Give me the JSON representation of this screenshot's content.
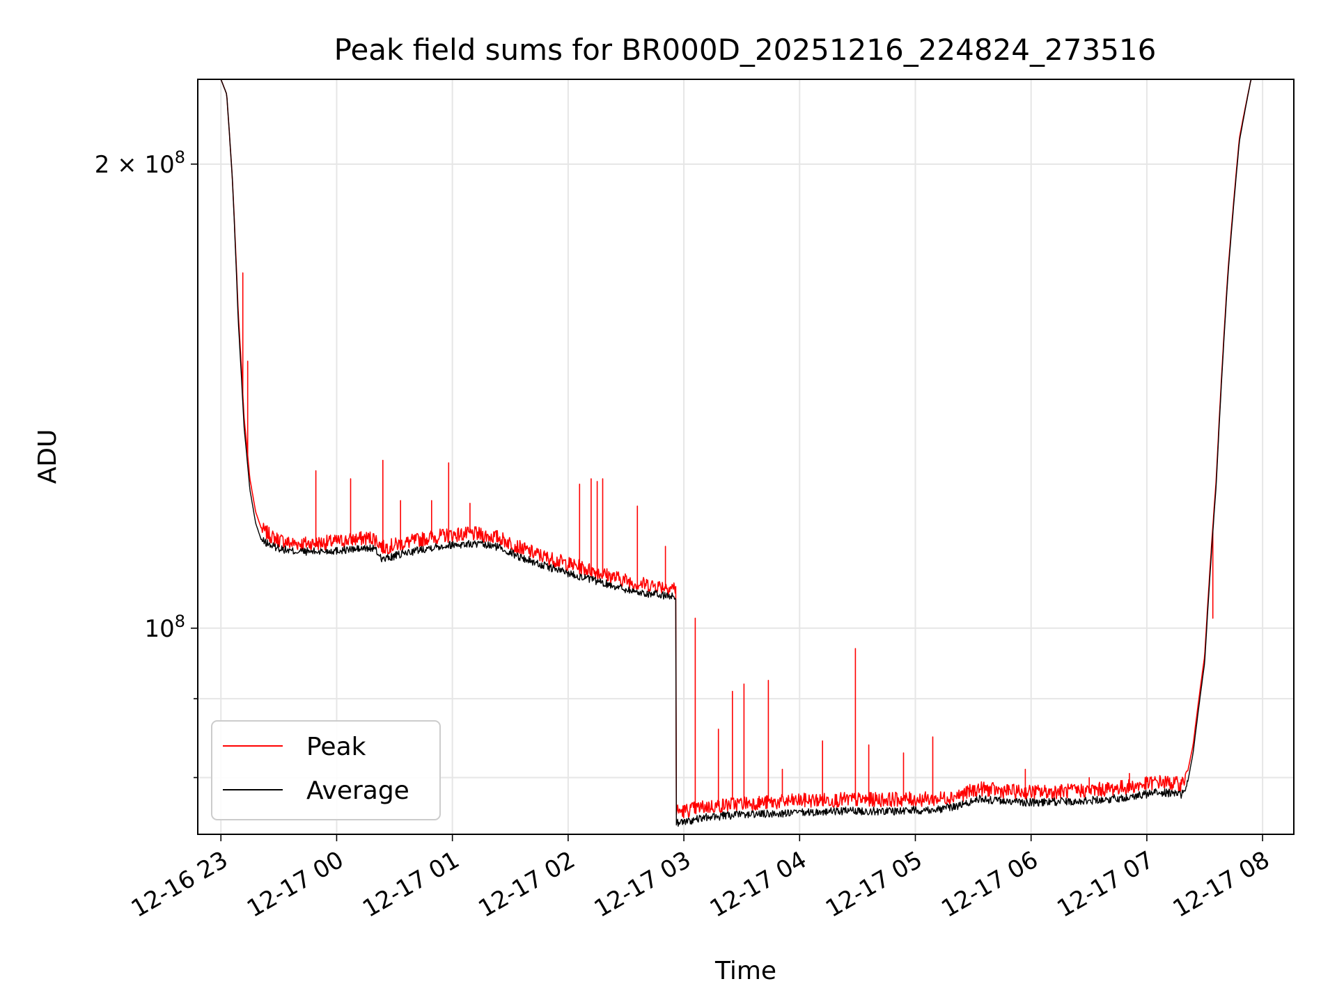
{
  "chart_data": {
    "type": "line",
    "title": "Peak field sums for BR000D_20251216_224824_273516",
    "xlabel": "Time",
    "ylabel": "ADU",
    "x_unit": "hours since 12-16 22:00",
    "xlim": [
      0.8,
      10.27
    ],
    "ylim": [
      73500000,
      227000000
    ],
    "yscale": "log",
    "grid": true,
    "legend_position": "lower-left",
    "x_ticks": [
      {
        "value": 1,
        "label": "12-16 23"
      },
      {
        "value": 2,
        "label": "12-17 00"
      },
      {
        "value": 3,
        "label": "12-17 01"
      },
      {
        "value": 4,
        "label": "12-17 02"
      },
      {
        "value": 5,
        "label": "12-17 03"
      },
      {
        "value": 6,
        "label": "12-17 04"
      },
      {
        "value": 7,
        "label": "12-17 05"
      },
      {
        "value": 8,
        "label": "12-17 06"
      },
      {
        "value": 9,
        "label": "12-17 07"
      },
      {
        "value": 10,
        "label": "12-17 08"
      }
    ],
    "y_major_ticks": [
      {
        "value": 100000000,
        "label_base": "10",
        "label_exp": "8"
      },
      {
        "value": 200000000,
        "label_base": "2 × 10",
        "label_exp": "8"
      }
    ],
    "y_minor_ticks": [
      80000000,
      90000000
    ],
    "series": [
      {
        "name": "Peak",
        "color": "#ff0000",
        "x": [
          0.8,
          1.0,
          1.05,
          1.1,
          1.15,
          1.2,
          1.25,
          1.3,
          1.35,
          1.45,
          1.6,
          1.8,
          2.0,
          2.15,
          2.32,
          2.4,
          2.6,
          2.8,
          3.0,
          3.2,
          3.4,
          3.6,
          3.8,
          4.0,
          4.2,
          4.4,
          4.6,
          4.93,
          4.935,
          5.0,
          5.1,
          5.2,
          5.3,
          5.5,
          5.8,
          6.0,
          6.2,
          6.4,
          6.6,
          6.8,
          7.0,
          7.2,
          7.4,
          7.55,
          7.7,
          7.9,
          8.1,
          8.3,
          8.5,
          8.7,
          8.9,
          9.1,
          9.3,
          9.35,
          9.4,
          9.5,
          9.6,
          9.7,
          9.8,
          9.9,
          10.27
        ],
        "y": [
          227000000,
          227000000,
          222000000,
          195000000,
          160000000,
          137000000,
          125000000,
          119000000,
          116000000,
          114500000,
          113500000,
          113500000,
          113800000,
          114200000,
          114500000,
          112800000,
          113600000,
          114500000,
          115000000,
          115100000,
          114500000,
          112600000,
          111200000,
          110100000,
          109000000,
          107900000,
          106900000,
          106200000,
          76100000,
          76100000,
          76400000,
          76600000,
          76700000,
          77000000,
          77100000,
          77300000,
          77350000,
          77400000,
          77400000,
          77450000,
          77450000,
          77500000,
          78000000,
          78700000,
          78500000,
          78300000,
          78300000,
          78400000,
          78500000,
          78700000,
          79000000,
          79500000,
          79200000,
          80500000,
          84000000,
          96000000,
          125000000,
          170000000,
          208000000,
          227000000,
          227000000
        ],
        "spikes": [
          [
            1.19,
            170000000
          ],
          [
            1.23,
            149000000
          ],
          [
            1.82,
            126500000
          ],
          [
            2.12,
            125000000
          ],
          [
            2.4,
            128500000
          ],
          [
            2.55,
            121000000
          ],
          [
            2.82,
            121000000
          ],
          [
            2.97,
            128000000
          ],
          [
            3.15,
            120500000
          ],
          [
            4.1,
            124000000
          ],
          [
            4.2,
            125000000
          ],
          [
            4.25,
            124500000
          ],
          [
            4.3,
            125000000
          ],
          [
            4.6,
            120000000
          ],
          [
            4.84,
            113000000
          ],
          [
            5.1,
            101500000
          ],
          [
            5.3,
            86000000
          ],
          [
            5.42,
            91000000
          ],
          [
            5.52,
            92000000
          ],
          [
            5.73,
            92500000
          ],
          [
            5.85,
            81000000
          ],
          [
            6.2,
            84500000
          ],
          [
            6.48,
            97000000
          ],
          [
            6.6,
            84000000
          ],
          [
            6.9,
            83000000
          ],
          [
            7.15,
            85000000
          ],
          [
            7.95,
            81000000
          ],
          [
            8.5,
            80000000
          ],
          [
            8.85,
            80500000
          ],
          [
            9.57,
            101500000
          ]
        ]
      },
      {
        "name": "Average",
        "color": "#000000",
        "x": [
          0.8,
          1.0,
          1.05,
          1.1,
          1.15,
          1.2,
          1.25,
          1.3,
          1.35,
          1.45,
          1.6,
          1.8,
          2.0,
          2.15,
          2.32,
          2.4,
          2.6,
          2.8,
          3.0,
          3.2,
          3.4,
          3.6,
          3.8,
          4.0,
          4.2,
          4.4,
          4.6,
          4.93,
          4.935,
          5.0,
          5.1,
          5.2,
          5.3,
          5.5,
          5.8,
          6.0,
          6.2,
          6.4,
          6.6,
          6.8,
          7.0,
          7.2,
          7.4,
          7.55,
          7.7,
          7.9,
          8.1,
          8.3,
          8.5,
          8.7,
          8.9,
          9.1,
          9.3,
          9.35,
          9.4,
          9.5,
          9.6,
          9.7,
          9.8,
          9.9,
          10.27
        ],
        "y": [
          227000000,
          227000000,
          222000000,
          195000000,
          158000000,
          135000000,
          123000000,
          117000000,
          114000000,
          113000000,
          112200000,
          112100000,
          112300000,
          112500000,
          112700000,
          110800000,
          111900000,
          112800000,
          113300000,
          113400000,
          112900000,
          111100000,
          109700000,
          108600000,
          107500000,
          106500000,
          105500000,
          104800000,
          74800000,
          74900000,
          75100000,
          75400000,
          75500000,
          75700000,
          75800000,
          75900000,
          76000000,
          76100000,
          76100000,
          76100000,
          76200000,
          76300000,
          76800000,
          77500000,
          77300000,
          77100000,
          77100000,
          77200000,
          77300000,
          77500000,
          77800000,
          78300000,
          78000000,
          79200000,
          83000000,
          95000000,
          124000000,
          169000000,
          207000000,
          227000000,
          227000000
        ]
      }
    ]
  }
}
